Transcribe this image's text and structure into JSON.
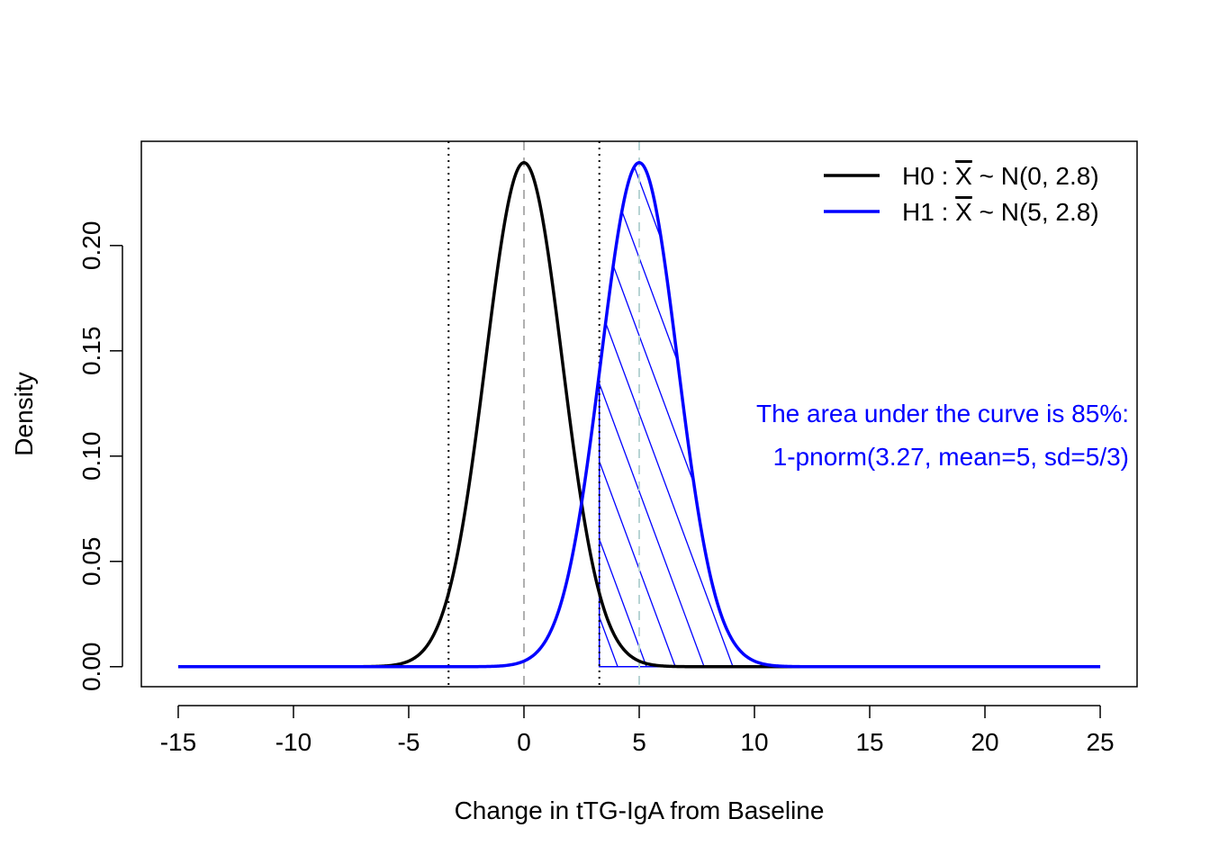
{
  "chart_data": {
    "type": "line",
    "xlabel": "Change in tTG-IgA from Baseline",
    "ylabel": "Density",
    "xlim": [
      -16.6,
      26.6
    ],
    "ylim": [
      -0.0095,
      0.2495
    ],
    "x_ticks": [
      "-15",
      "-10",
      "-5",
      "0",
      "5",
      "10",
      "15",
      "20",
      "25"
    ],
    "x_tick_values": [
      -15,
      -10,
      -5,
      0,
      5,
      10,
      15,
      20,
      25
    ],
    "y_ticks": [
      "0.00",
      "0.05",
      "0.10",
      "0.15",
      "0.20"
    ],
    "y_tick_values": [
      0.0,
      0.05,
      0.1,
      0.15,
      0.2
    ],
    "x_range": [
      -15,
      25
    ],
    "series": [
      {
        "mean": 0,
        "sd": 1.6667,
        "color": "#000000"
      },
      {
        "mean": 5,
        "sd": 1.6667,
        "color": "#0000ff"
      }
    ],
    "legend": {
      "placement": "top-right",
      "entries": [
        {
          "prefix": "H0 : ",
          "xbar": "X",
          "suffix": " ~ N(0, 2.8)",
          "color": "#000000"
        },
        {
          "prefix": "H1 : ",
          "xbar": "X",
          "suffix": " ~ N(5, 2.8)",
          "color": "#0000ff"
        }
      ]
    },
    "critical_lines": [
      -3.27,
      3.27
    ],
    "mean_lines": [
      {
        "x": 0,
        "color": "#b0b0b0"
      },
      {
        "x": 5,
        "color": "#b8d4d4"
      }
    ],
    "shaded_region": {
      "from": 3.27,
      "to": 25,
      "series": 1,
      "color": "#0000ff"
    },
    "annotation": [
      "The area under the curve is 85%:",
      "1-pnorm(3.27, mean=5, sd=5/3)"
    ]
  }
}
